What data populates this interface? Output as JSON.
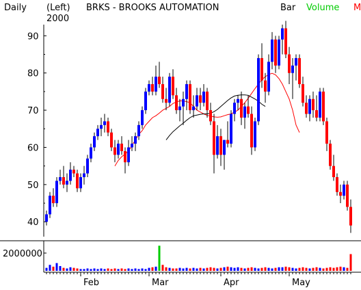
{
  "header": {
    "period": "Daily",
    "axis_side": "(Left)",
    "title": "BRKS - BROOKS AUTOMATION",
    "year": "2000",
    "style": "Bar",
    "volume_label": "Volume",
    "truncated_label": "M"
  },
  "colors": {
    "up": "#0000ff",
    "down": "#ff0000",
    "ma_short": "#ff0000",
    "ma_long": "#000000",
    "volume_label": "#00cc00",
    "volume_spike": "#00cc00"
  },
  "chart_data": [
    {
      "type": "candlestick",
      "title": "BRKS - BROOKS AUTOMATION",
      "ylim": [
        36,
        93
      ],
      "yticks": [
        40,
        50,
        60,
        70,
        80,
        90
      ],
      "ytick_labels": [
        "40",
        "50",
        "60",
        "70",
        "80",
        "90"
      ],
      "x_labels": [
        "Feb",
        "Mar",
        "Apr",
        "May"
      ],
      "x_label_indices": [
        10,
        30,
        51,
        71
      ],
      "candles": [
        [
          40,
          43,
          39,
          42
        ],
        [
          42,
          48,
          41,
          47
        ],
        [
          47,
          49,
          44,
          45
        ],
        [
          45,
          52,
          44,
          51
        ],
        [
          51,
          54,
          50,
          52
        ],
        [
          52,
          55,
          49,
          50
        ],
        [
          50,
          53,
          48,
          51
        ],
        [
          51,
          56,
          50,
          54
        ],
        [
          54,
          55,
          52,
          53
        ],
        [
          53,
          54,
          48,
          49
        ],
        [
          49,
          53,
          48,
          52
        ],
        [
          52,
          55,
          50,
          53
        ],
        [
          53,
          58,
          52,
          57
        ],
        [
          57,
          61,
          56,
          60
        ],
        [
          60,
          64,
          59,
          63
        ],
        [
          63,
          66,
          62,
          65
        ],
        [
          65,
          68,
          63,
          66
        ],
        [
          66,
          69,
          64,
          67
        ],
        [
          67,
          68,
          63,
          64
        ],
        [
          64,
          65,
          59,
          60
        ],
        [
          60,
          62,
          56,
          58
        ],
        [
          58,
          62,
          57,
          61
        ],
        [
          61,
          63,
          58,
          59
        ],
        [
          59,
          60,
          53,
          56
        ],
        [
          56,
          62,
          55,
          60
        ],
        [
          60,
          63,
          59,
          61
        ],
        [
          61,
          64,
          59,
          63
        ],
        [
          63,
          67,
          62,
          66
        ],
        [
          66,
          71,
          65,
          70
        ],
        [
          70,
          76,
          69,
          75
        ],
        [
          75,
          78,
          74,
          77
        ],
        [
          77,
          79,
          74,
          75
        ],
        [
          75,
          82,
          74,
          79
        ],
        [
          79,
          83,
          76,
          77
        ],
        [
          77,
          79,
          72,
          73
        ],
        [
          73,
          76,
          70,
          72
        ],
        [
          72,
          80,
          71,
          79
        ],
        [
          79,
          81,
          73,
          74
        ],
        [
          74,
          76,
          69,
          70
        ],
        [
          70,
          73,
          67,
          71
        ],
        [
          71,
          75,
          66,
          73
        ],
        [
          73,
          78,
          70,
          77
        ],
        [
          77,
          78,
          69,
          70
        ],
        [
          70,
          74,
          68,
          71
        ],
        [
          71,
          76,
          70,
          74
        ],
        [
          74,
          76,
          70,
          72
        ],
        [
          72,
          77,
          71,
          75
        ],
        [
          75,
          76,
          68,
          70
        ],
        [
          70,
          72,
          66,
          67
        ],
        [
          67,
          69,
          53,
          58
        ],
        [
          58,
          66,
          57,
          63
        ],
        [
          63,
          65,
          55,
          58
        ],
        [
          58,
          62,
          54,
          62
        ],
        [
          62,
          67,
          60,
          61
        ],
        [
          61,
          70,
          60,
          69
        ],
        [
          69,
          73,
          67,
          72
        ],
        [
          72,
          74,
          70,
          73
        ],
        [
          73,
          75,
          66,
          68
        ],
        [
          68,
          72,
          65,
          71
        ],
        [
          71,
          74,
          68,
          69
        ],
        [
          69,
          71,
          58,
          60
        ],
        [
          60,
          68,
          59,
          67
        ],
        [
          67,
          85,
          66,
          84
        ],
        [
          84,
          88,
          76,
          78
        ],
        [
          78,
          80,
          72,
          75
        ],
        [
          75,
          85,
          74,
          83
        ],
        [
          83,
          91,
          81,
          89
        ],
        [
          89,
          90,
          80,
          82
        ],
        [
          82,
          90,
          81,
          89
        ],
        [
          89,
          93,
          85,
          92
        ],
        [
          92,
          94,
          84,
          85
        ],
        [
          85,
          87,
          77,
          80
        ],
        [
          80,
          84,
          73,
          82
        ],
        [
          82,
          85,
          78,
          84
        ],
        [
          84,
          85,
          76,
          77
        ],
        [
          77,
          79,
          71,
          72
        ],
        [
          72,
          74,
          68,
          69
        ],
        [
          69,
          74,
          67,
          73
        ],
        [
          73,
          75,
          68,
          70
        ],
        [
          70,
          74,
          67,
          68
        ],
        [
          68,
          76,
          67,
          75
        ],
        [
          75,
          76,
          66,
          67
        ],
        [
          67,
          68,
          59,
          61
        ],
        [
          61,
          62,
          54,
          55
        ],
        [
          55,
          58,
          51,
          52
        ],
        [
          52,
          53,
          47,
          48
        ],
        [
          48,
          50,
          45,
          47
        ],
        [
          47,
          51,
          46,
          50
        ],
        [
          50,
          51,
          43,
          44
        ],
        [
          44,
          46,
          37,
          39
        ]
      ],
      "ma_short": [
        [
          20,
          55
        ],
        [
          21,
          56.5
        ],
        [
          22,
          57.5
        ],
        [
          23,
          58.2
        ],
        [
          24,
          59
        ],
        [
          25,
          60.5
        ],
        [
          26,
          62
        ],
        [
          27,
          63.5
        ],
        [
          28,
          64.5
        ],
        [
          29,
          66
        ],
        [
          30,
          67
        ],
        [
          31,
          68
        ],
        [
          32,
          68.5
        ],
        [
          33,
          69.2
        ],
        [
          34,
          70
        ],
        [
          35,
          70.5
        ],
        [
          36,
          71
        ],
        [
          37,
          71.8
        ],
        [
          38,
          72.2
        ],
        [
          39,
          72.5
        ],
        [
          40,
          72.5
        ],
        [
          41,
          72.3
        ],
        [
          42,
          72
        ],
        [
          43,
          71
        ],
        [
          44,
          70
        ],
        [
          45,
          69.5
        ],
        [
          46,
          69
        ],
        [
          47,
          68.6
        ],
        [
          48,
          68.4
        ],
        [
          49,
          68.2
        ],
        [
          50,
          68.1
        ],
        [
          51,
          68.2
        ],
        [
          52,
          68.5
        ],
        [
          53,
          68.8
        ],
        [
          54,
          69
        ],
        [
          55,
          69.5
        ],
        [
          56,
          70
        ],
        [
          57,
          71
        ],
        [
          58,
          72
        ],
        [
          59,
          73.2
        ],
        [
          60,
          74.5
        ],
        [
          61,
          75.8
        ],
        [
          62,
          77
        ],
        [
          63,
          78.2
        ],
        [
          64,
          79
        ],
        [
          65,
          79.6
        ],
        [
          66,
          79.9
        ],
        [
          67,
          79.5
        ],
        [
          68,
          78.5
        ],
        [
          69,
          77
        ],
        [
          70,
          75
        ],
        [
          71,
          73
        ],
        [
          72,
          70
        ],
        [
          73,
          66
        ],
        [
          74,
          64
        ]
      ],
      "ma_long": [
        [
          35,
          62
        ],
        [
          36,
          63.2
        ],
        [
          37,
          64.2
        ],
        [
          38,
          65
        ],
        [
          39,
          65.8
        ],
        [
          40,
          66.5
        ],
        [
          41,
          67.3
        ],
        [
          42,
          68
        ],
        [
          43,
          68.5
        ],
        [
          44,
          68.7
        ],
        [
          45,
          68.9
        ],
        [
          46,
          69
        ],
        [
          47,
          69
        ],
        [
          48,
          69.2
        ],
        [
          49,
          69.6
        ],
        [
          50,
          70.2
        ],
        [
          51,
          71
        ],
        [
          52,
          71.8
        ],
        [
          53,
          72.6
        ],
        [
          54,
          73.3
        ],
        [
          55,
          73.8
        ],
        [
          56,
          74
        ],
        [
          57,
          74.1
        ],
        [
          58,
          74.1
        ],
        [
          59,
          74
        ],
        [
          60,
          73.5
        ],
        [
          61,
          73
        ],
        [
          62,
          72.4
        ],
        [
          63,
          71.6
        ],
        [
          64,
          71
        ]
      ],
      "volume": {
        "axis_label": "2000000",
        "ymax": 2400000,
        "bars": [
          [
            0,
            250000
          ],
          [
            1,
            500000
          ],
          [
            2,
            350000
          ],
          [
            3,
            650000
          ],
          [
            4,
            400000
          ],
          [
            5,
            250000
          ],
          [
            6,
            200000
          ],
          [
            7,
            300000
          ],
          [
            8,
            250000
          ],
          [
            9,
            200000
          ],
          [
            10,
            150000
          ],
          [
            11,
            150000
          ],
          [
            12,
            200000
          ],
          [
            13,
            150000
          ],
          [
            14,
            200000
          ],
          [
            15,
            150000
          ],
          [
            16,
            200000
          ],
          [
            17,
            150000
          ],
          [
            18,
            200000
          ],
          [
            19,
            150000
          ],
          [
            20,
            200000
          ],
          [
            21,
            150000
          ],
          [
            22,
            200000
          ],
          [
            23,
            150000
          ],
          [
            24,
            200000
          ],
          [
            25,
            150000
          ],
          [
            26,
            200000
          ],
          [
            27,
            150000
          ],
          [
            28,
            200000
          ],
          [
            29,
            150000
          ],
          [
            30,
            250000
          ],
          [
            31,
            300000
          ],
          [
            32,
            350000
          ],
          [
            33,
            2100000
          ],
          [
            34,
            500000
          ],
          [
            35,
            300000
          ],
          [
            36,
            250000
          ],
          [
            37,
            200000
          ],
          [
            38,
            200000
          ],
          [
            39,
            250000
          ],
          [
            40,
            200000
          ],
          [
            41,
            250000
          ],
          [
            42,
            200000
          ],
          [
            43,
            250000
          ],
          [
            44,
            200000
          ],
          [
            45,
            250000
          ],
          [
            46,
            200000
          ],
          [
            47,
            250000
          ],
          [
            48,
            300000
          ],
          [
            49,
            250000
          ],
          [
            50,
            200000
          ],
          [
            51,
            250000
          ],
          [
            52,
            300000
          ],
          [
            53,
            350000
          ],
          [
            54,
            300000
          ],
          [
            55,
            250000
          ],
          [
            56,
            300000
          ],
          [
            57,
            250000
          ],
          [
            58,
            200000
          ],
          [
            59,
            250000
          ],
          [
            60,
            300000
          ],
          [
            61,
            250000
          ],
          [
            62,
            200000
          ],
          [
            63,
            250000
          ],
          [
            64,
            300000
          ],
          [
            65,
            250000
          ],
          [
            66,
            200000
          ],
          [
            67,
            250000
          ],
          [
            68,
            300000
          ],
          [
            69,
            300000
          ],
          [
            70,
            350000
          ],
          [
            71,
            300000
          ],
          [
            72,
            250000
          ],
          [
            73,
            200000
          ],
          [
            74,
            250000
          ],
          [
            75,
            300000
          ],
          [
            76,
            250000
          ],
          [
            77,
            200000
          ],
          [
            78,
            250000
          ],
          [
            79,
            300000
          ],
          [
            80,
            250000
          ],
          [
            81,
            200000
          ],
          [
            82,
            250000
          ],
          [
            83,
            300000
          ],
          [
            84,
            250000
          ],
          [
            85,
            300000
          ],
          [
            86,
            350000
          ],
          [
            87,
            300000
          ],
          [
            88,
            250000
          ],
          [
            89,
            1400000
          ]
        ]
      }
    }
  ]
}
